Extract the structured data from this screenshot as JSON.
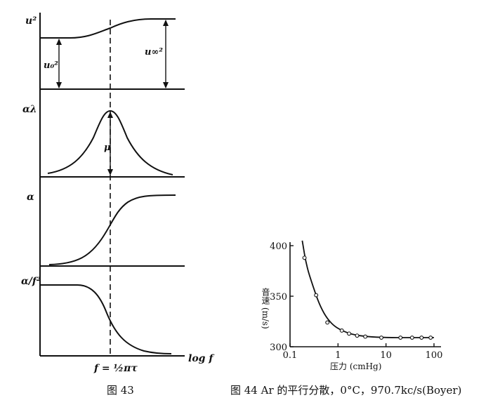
{
  "chart_data": [
    {
      "type": "line",
      "caption": "图 43",
      "xlabel": "log f",
      "x_marker_label": "f = ½πτ",
      "panels": [
        {
          "ylabel": "u²",
          "curve": "sigmoid-rise",
          "annotations": [
            "u₀²",
            "u∞²"
          ]
        },
        {
          "ylabel": "αλ",
          "curve": "peak",
          "annotations": [
            "μ"
          ]
        },
        {
          "ylabel": "α",
          "curve": "sigmoid-rise",
          "annotations": []
        },
        {
          "ylabel": "α/f²",
          "curve": "sigmoid-fall",
          "annotations": []
        }
      ]
    },
    {
      "type": "scatter",
      "caption": "图 44 Ar 的平行分散，0°C，970.7kc/s(Boyer)",
      "xlabel": "压力 (cmHg)",
      "ylabel": "音速 (m/s)",
      "xscale": "log",
      "xlim": [
        0.1,
        100
      ],
      "ylim": [
        300,
        400
      ],
      "xticks": [
        0.1,
        1,
        10,
        100
      ],
      "xtick_labels": [
        "0.1",
        "1",
        "10",
        "100"
      ],
      "yticks": [
        300,
        350,
        400
      ],
      "ytick_labels": [
        "300",
        "350",
        "400"
      ],
      "points": [
        {
          "x": 0.2,
          "y": 388
        },
        {
          "x": 0.35,
          "y": 351
        },
        {
          "x": 0.6,
          "y": 324
        },
        {
          "x": 1.2,
          "y": 316
        },
        {
          "x": 1.7,
          "y": 313
        },
        {
          "x": 2.5,
          "y": 311
        },
        {
          "x": 3.7,
          "y": 310
        },
        {
          "x": 8,
          "y": 309
        },
        {
          "x": 20,
          "y": 309
        },
        {
          "x": 35,
          "y": 309
        },
        {
          "x": 55,
          "y": 309
        },
        {
          "x": 85,
          "y": 309
        }
      ],
      "fit_curve": [
        {
          "x": 0.18,
          "y": 405
        },
        {
          "x": 0.22,
          "y": 380
        },
        {
          "x": 0.3,
          "y": 360
        },
        {
          "x": 0.4,
          "y": 343
        },
        {
          "x": 0.55,
          "y": 330
        },
        {
          "x": 0.8,
          "y": 321
        },
        {
          "x": 1.2,
          "y": 316
        },
        {
          "x": 2,
          "y": 312
        },
        {
          "x": 4,
          "y": 310
        },
        {
          "x": 10,
          "y": 309
        },
        {
          "x": 30,
          "y": 309
        },
        {
          "x": 100,
          "y": 309
        }
      ]
    }
  ]
}
